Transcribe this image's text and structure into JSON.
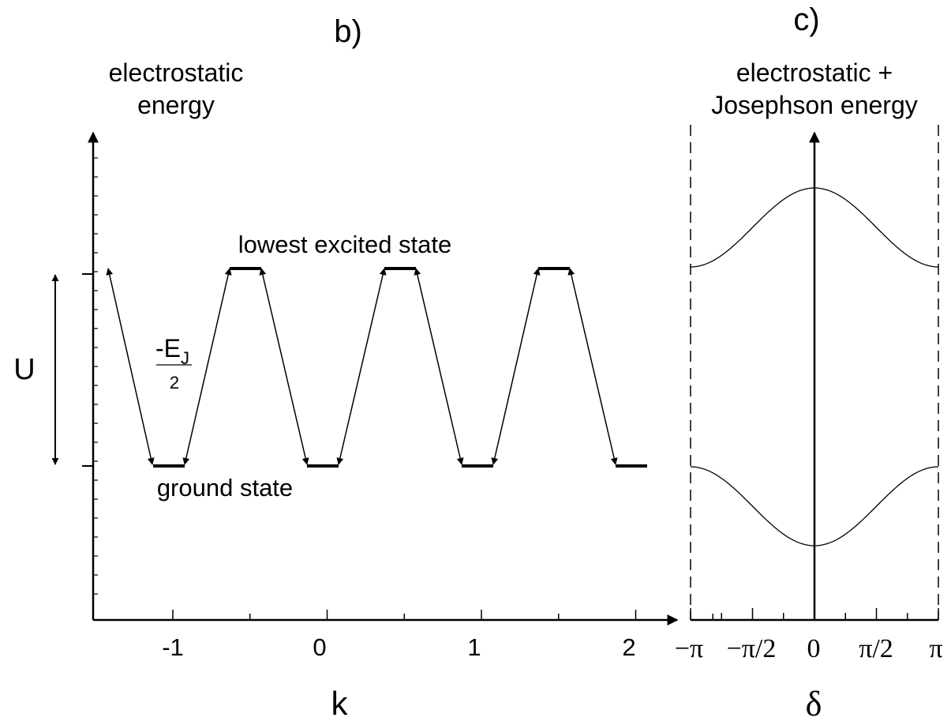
{
  "panel_b": {
    "label": "b)",
    "title_line1": "electrostatic",
    "title_line2": "energy",
    "x_axis_label": "k",
    "y_axis_label": "U",
    "x_ticks": [
      "-1",
      "0",
      "1",
      "2"
    ],
    "excited_label": "lowest excited state",
    "ground_label": "ground state",
    "coupling_numerator": "-E",
    "coupling_subscript": "J",
    "coupling_denominator": "2"
  },
  "panel_c": {
    "label": "c)",
    "title_line1": "electrostatic +",
    "title_line2": "Josephson energy",
    "x_axis_label": "δ",
    "x_ticks": [
      "−π",
      "−π/2",
      "0",
      "π/2",
      "π"
    ]
  },
  "colors": {
    "ink": "#000000",
    "background": "#ffffff"
  }
}
